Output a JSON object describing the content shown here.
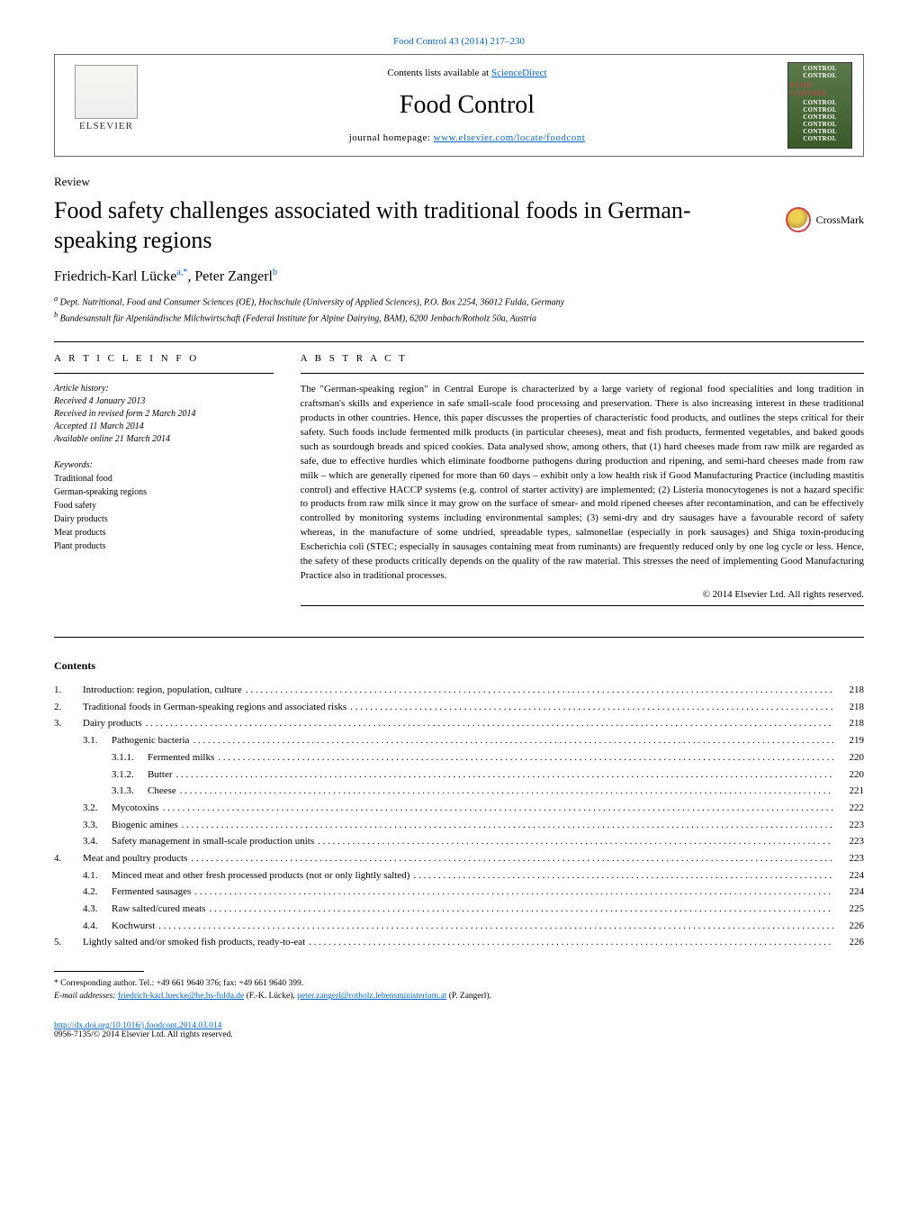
{
  "journal_ref": "Food Control 43 (2014) 217–230",
  "header": {
    "contents_text": "Contents lists available at ",
    "contents_link": "ScienceDirect",
    "journal_title": "Food Control",
    "homepage_prefix": "journal homepage: ",
    "homepage_url": "www.elsevier.com/locate/foodcont",
    "elsevier": "ELSEVIER",
    "cover_lines": [
      "CONTROL",
      "CONTROL",
      "FOOD CONTROL",
      "CONTROL",
      "CONTROL",
      "CONTROL",
      "CONTROL",
      "CONTROL",
      "CONTROL"
    ]
  },
  "article_type": "Review",
  "title": "Food safety challenges associated with traditional foods in German-speaking regions",
  "crossmark": "CrossMark",
  "authors_html": "Friedrich-Karl Lücke",
  "author_sup_a": "a,*",
  "author_sep": ", Peter Zangerl",
  "author_sup_b": "b",
  "affiliations": {
    "a": "Dept. Nutritional, Food and Consumer Sciences (OE), Hochschule (University of Applied Sciences), P.O. Box 2254, 36012 Fulda, Germany",
    "b": "Bundesanstalt für Alpenländische Milchwirtschaft (Federal Institute for Alpine Dairying, BAM), 6200 Jenbach/Rotholz 50a, Austria"
  },
  "info_heading": "A R T I C L E   I N F O",
  "abstract_heading": "A B S T R A C T",
  "history": {
    "label": "Article history:",
    "received": "Received 4 January 2013",
    "revised": "Received in revised form 2 March 2014",
    "accepted": "Accepted 11 March 2014",
    "online": "Available online 21 March 2014"
  },
  "keywords_label": "Keywords:",
  "keywords": [
    "Traditional food",
    "German-speaking regions",
    "Food safety",
    "Dairy products",
    "Meat products",
    "Plant products"
  ],
  "abstract": "The \"German-speaking region\" in Central Europe is characterized by a large variety of regional food specialities and long tradition in craftsman's skills and experience in safe small-scale food processing and preservation. There is also increasing interest in these traditional products in other countries. Hence, this paper discusses the properties of characteristic food products, and outlines the steps critical for their safety. Such foods include fermented milk products (in particular cheeses), meat and fish products, fermented vegetables, and baked goods such as sourdough breads and spiced cookies. Data analysed show, among others, that (1) hard cheeses made from raw milk are regarded as safe, due to effective hurdles which eliminate foodborne pathogens during production and ripening, and semi-hard cheeses made from raw milk – which are generally ripened for more than 60 days – exhibit only a low health risk if Good Manufacturing Practice (including mastitis control) and effective HACCP systems (e.g. control of starter activity) are implemented; (2) Listeria monocytogenes is not a hazard specific to products from raw milk since it may grow on the surface of smear- and mold ripened cheeses after recontamination, and can be effectively controlled by monitoring systems including environmental samples; (3) semi-dry and dry sausages have a favourable record of safety whereas, in the manufacture of some undried, spreadable types, salmonellae (especially in pork sausages) and Shiga toxin-producing Escherichia coli (STEC; especially in sausages containing meat from ruminants) are frequently reduced only by one log cycle or less. Hence, the safety of these products critically depends on the quality of the raw material. This stresses the need of implementing Good Manufacturing Practice also in traditional processes.",
  "abstract_copyright": "© 2014 Elsevier Ltd. All rights reserved.",
  "contents_heading": "Contents",
  "toc": [
    {
      "num": "1.",
      "level": 0,
      "title": "Introduction: region, population, culture",
      "page": "218"
    },
    {
      "num": "2.",
      "level": 0,
      "title": "Traditional foods in German-speaking regions and associated risks",
      "page": "218"
    },
    {
      "num": "3.",
      "level": 0,
      "title": "Dairy products",
      "page": "218"
    },
    {
      "num": "3.1.",
      "level": 1,
      "title": "Pathogenic bacteria",
      "page": "219"
    },
    {
      "num": "3.1.1.",
      "level": 2,
      "title": "Fermented milks",
      "page": "220"
    },
    {
      "num": "3.1.2.",
      "level": 2,
      "title": "Butter",
      "page": "220"
    },
    {
      "num": "3.1.3.",
      "level": 2,
      "title": "Cheese",
      "page": "221"
    },
    {
      "num": "3.2.",
      "level": 1,
      "title": "Mycotoxins",
      "page": "222"
    },
    {
      "num": "3.3.",
      "level": 1,
      "title": "Biogenic amines",
      "page": "223"
    },
    {
      "num": "3.4.",
      "level": 1,
      "title": "Safety management in small-scale production units",
      "page": "223"
    },
    {
      "num": "4.",
      "level": 0,
      "title": "Meat and poultry products",
      "page": "223"
    },
    {
      "num": "4.1.",
      "level": 1,
      "title": "Minced meat and other fresh processed products (not or only lightly salted)",
      "page": "224"
    },
    {
      "num": "4.2.",
      "level": 1,
      "title": "Fermented sausages",
      "page": "224"
    },
    {
      "num": "4.3.",
      "level": 1,
      "title": "Raw salted/cured meats",
      "page": "225"
    },
    {
      "num": "4.4.",
      "level": 1,
      "title": "Kochwurst",
      "page": "226"
    },
    {
      "num": "5.",
      "level": 0,
      "title": "Lightly salted and/or smoked fish products, ready-to-eat",
      "page": "226"
    }
  ],
  "footnote": {
    "corresponding": "* Corresponding author. Tel.: +49 661 9640 376; fax: +49 661 9640 399.",
    "emails_label": "E-mail addresses: ",
    "email1": "friedrich-karl.luecke@he.hs-fulda.de",
    "email1_who": " (F.-K. Lücke), ",
    "email2": "peter.zangerl@rotholz.lebensministerium.at",
    "email2_who": " (P. Zangerl)."
  },
  "doi": {
    "url": "http://dx.doi.org/10.1016/j.foodcont.2014.03.014",
    "issn_line": "0956-7135/© 2014 Elsevier Ltd. All rights reserved."
  }
}
